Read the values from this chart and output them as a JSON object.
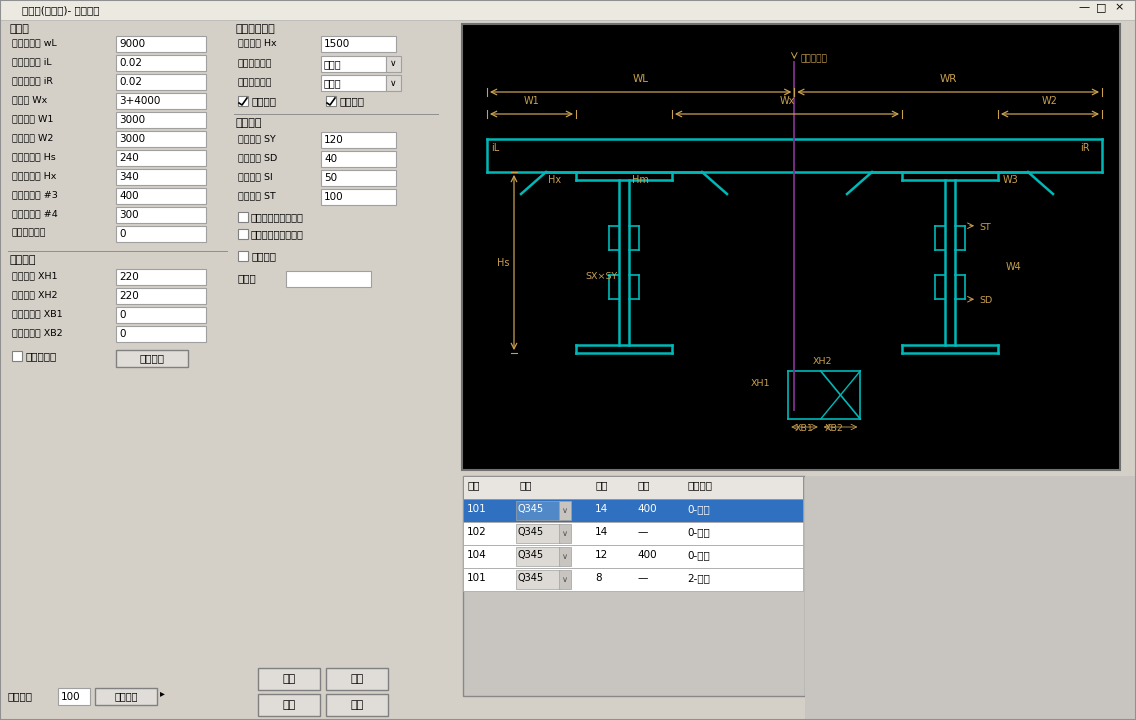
{
  "title": "钢板梁(组合梁)- 标准截面",
  "window_bg": "#d4d0c8",
  "white": "#ffffff",
  "black": "#000000",
  "blue_select": "#3070c0",
  "diagram_bg": "#000000",
  "cyan": "#00b8b8",
  "gold": "#c8a050",
  "purple": "#803090",
  "left_panel": {
    "section1_title": "桥面板",
    "fields1": [
      [
        "桥面板宽度 wL",
        "9000"
      ],
      [
        "桥面板左坡 iL",
        "0.02"
      ],
      [
        "桥面板右坡 iR",
        "0.02"
      ],
      [
        "梁间距 Wx",
        "3+4000"
      ],
      [
        "左侧悬臂 W1",
        "3000"
      ],
      [
        "右侧悬臂 W2",
        "3000"
      ],
      [
        "桥面板厚度 Hs",
        "240"
      ],
      [
        "桥面板厚度 Hx",
        "340"
      ],
      [
        "钢混结合宽 #3",
        "400"
      ],
      [
        "钢混过渡宽 #4",
        "300"
      ],
      [
        "钢梁对齐调整",
        "0"
      ]
    ],
    "section2_title": "悬臂装部",
    "fields2": [
      [
        "悬臂高度 XH1",
        "220"
      ],
      [
        "悬臂高度 XH2",
        "220"
      ],
      [
        "翼缘加厚长 XB1",
        "0"
      ],
      [
        "翼缘过渡长 XB2",
        "0"
      ]
    ],
    "checkbox2": "设置钢悬臂",
    "button2": "悬臂定义"
  },
  "middle_panel": {
    "section1_title": "钢梁标准截面",
    "fields1": [
      [
        "钢梁高度 Hx",
        "1500"
      ]
    ],
    "dropdown1_label": "顶板对齐方式",
    "dropdown1_val": "内对齐",
    "dropdown2_label": "底板对齐方式",
    "dropdown2_val": "内对齐",
    "checkbox1": "顶板水平",
    "checkbox2": "底板水平",
    "section2_title": "腹板竖肋",
    "fields2": [
      [
        "竖肋宽度 SY",
        "120"
      ],
      [
        "竖肋间距 SD",
        "40"
      ],
      [
        "竖肋倒角 SI",
        "50"
      ],
      [
        "竖肋倒角 ST",
        "100"
      ]
    ],
    "checkbox3": "边梁腹板双侧加劲肋",
    "checkbox4": "中梁腹板双侧加劲肋",
    "checkbox5": "箱室划分",
    "label_banshu": "腹板数"
  },
  "table": {
    "headers": [
      "编号",
      "类别",
      "",
      "板厚",
      "板宽",
      "钢筋说明"
    ],
    "rows": [
      [
        "101",
        "Q345",
        "∨",
        "14",
        "400",
        "0-顶板"
      ],
      [
        "102",
        "Q345",
        "∨",
        "14",
        "—",
        "0-腹板"
      ],
      [
        "104",
        "Q345",
        "∨",
        "12",
        "400",
        "0-底板"
      ],
      [
        "101",
        "Q345",
        "∨",
        "8",
        "—",
        "2-底模"
      ]
    ],
    "selected_row": 0
  },
  "bottom": {
    "scale_label": "出图比例",
    "scale_val": "100",
    "draw_btn": "绘制断面",
    "ok_btn": "确定",
    "cancel_btn": "取消",
    "open_btn": "打开",
    "save_btn": "保存"
  }
}
